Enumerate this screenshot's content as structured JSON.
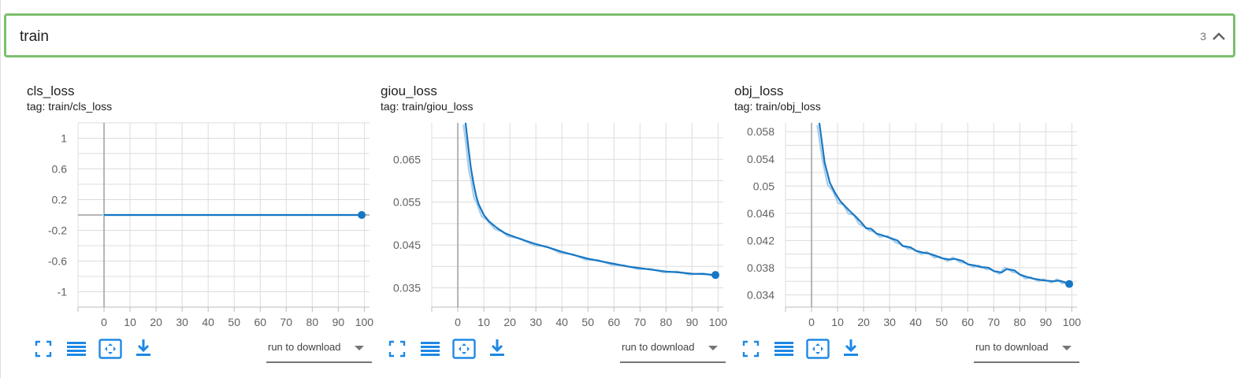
{
  "group": {
    "title": "train",
    "count": "3"
  },
  "toolbar": {
    "run_to_download": "run to download"
  },
  "chart_data": [
    {
      "type": "line",
      "title": "cls_loss",
      "tag": "tag: train/cls_loss",
      "xlim": [
        -10,
        102
      ],
      "ylim": [
        -1.2,
        1.2
      ],
      "xticks": [
        0,
        10,
        20,
        30,
        40,
        50,
        60,
        70,
        80,
        90,
        100
      ],
      "yticks": [
        1,
        0.6,
        0.2,
        -0.2,
        -0.6,
        -1
      ],
      "ytick_labels": [
        "1",
        "0.6",
        "0.2",
        "-0.2",
        "-0.6",
        "-1"
      ],
      "series": [
        {
          "x": [
            0,
            10,
            20,
            30,
            40,
            50,
            60,
            70,
            80,
            90,
            99
          ],
          "y": [
            0,
            0,
            0,
            0,
            0,
            0,
            0,
            0,
            0,
            0,
            0
          ]
        }
      ],
      "grid": true,
      "color": "#1777c4"
    },
    {
      "type": "line",
      "title": "giou_loss",
      "tag": "tag: train/giou_loss",
      "xlim": [
        -10,
        102
      ],
      "ylim": [
        0.0305,
        0.0735
      ],
      "xticks": [
        0,
        10,
        20,
        30,
        40,
        50,
        60,
        70,
        80,
        90,
        100
      ],
      "yticks": [
        0.065,
        0.055,
        0.045,
        0.035
      ],
      "ytick_labels": [
        "0.065",
        "0.055",
        "0.045",
        "0.035"
      ],
      "series": [
        {
          "x": [
            3,
            4,
            5,
            6,
            7,
            8,
            10,
            12,
            15,
            18,
            20,
            25,
            30,
            35,
            40,
            45,
            50,
            55,
            60,
            65,
            70,
            75,
            80,
            85,
            90,
            95,
            99
          ],
          "y": [
            0.0735,
            0.068,
            0.063,
            0.0595,
            0.0565,
            0.0545,
            0.052,
            0.0505,
            0.049,
            0.0478,
            0.0473,
            0.0462,
            0.0452,
            0.0444,
            0.0434,
            0.0426,
            0.0418,
            0.0412,
            0.0406,
            0.04,
            0.0396,
            0.0392,
            0.0388,
            0.0386,
            0.0383,
            0.0382,
            0.038
          ]
        }
      ],
      "grid": true,
      "color": "#1777c4"
    },
    {
      "type": "line",
      "title": "obj_loss",
      "tag": "tag: train/obj_loss",
      "xlim": [
        -10,
        102
      ],
      "ylim": [
        0.0322,
        0.0593
      ],
      "xticks": [
        0,
        10,
        20,
        30,
        40,
        50,
        60,
        70,
        80,
        90,
        100
      ],
      "yticks": [
        0.058,
        0.054,
        0.05,
        0.046,
        0.042,
        0.038,
        0.034
      ],
      "ytick_labels": [
        "0.058",
        "0.054",
        "0.05",
        "0.046",
        "0.042",
        "0.038",
        "0.034"
      ],
      "series": [
        {
          "x": [
            3,
            5,
            7,
            9,
            11,
            13,
            15,
            17,
            19,
            21,
            23,
            25,
            27,
            30,
            33,
            35,
            38,
            40,
            43,
            45,
            48,
            50,
            53,
            55,
            58,
            60,
            63,
            65,
            68,
            70,
            73,
            75,
            78,
            80,
            83,
            85,
            88,
            90,
            93,
            95,
            97,
            99
          ],
          "y": [
            0.0593,
            0.0535,
            0.0505,
            0.049,
            0.0478,
            0.047,
            0.0462,
            0.0455,
            0.0447,
            0.0438,
            0.0437,
            0.043,
            0.0428,
            0.0424,
            0.042,
            0.0412,
            0.041,
            0.0405,
            0.0402,
            0.0401,
            0.0397,
            0.0394,
            0.0392,
            0.0393,
            0.039,
            0.0385,
            0.0383,
            0.0381,
            0.038,
            0.0375,
            0.0373,
            0.0378,
            0.0376,
            0.037,
            0.0366,
            0.0364,
            0.0362,
            0.0361,
            0.036,
            0.0361,
            0.0359,
            0.0356
          ]
        }
      ],
      "grid": true,
      "color": "#1777c4"
    }
  ]
}
